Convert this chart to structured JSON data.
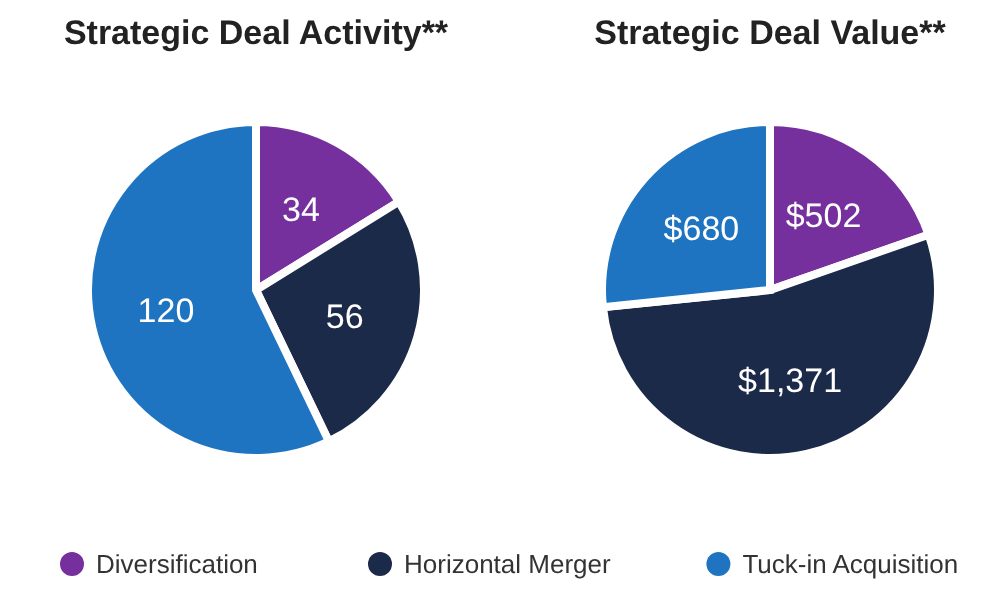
{
  "chart_data": [
    {
      "type": "pie",
      "title": "Strategic Deal Activity**",
      "categories": [
        "Diversification",
        "Horizontal Merger",
        "Tuck-in Acquisition"
      ],
      "values": [
        34,
        56,
        120
      ],
      "colors": [
        "#76309e",
        "#1b2a48",
        "#1f74c2"
      ],
      "data_labels": true,
      "legend": "bottom"
    },
    {
      "type": "pie",
      "title": "Strategic Deal Value**",
      "categories": [
        null,
        null,
        null
      ],
      "values": [
        502,
        1371,
        680
      ],
      "colors": [
        "#76309e",
        "#1b2a48",
        "#1f74c2"
      ],
      "value_labels": [
        "$502",
        "$1,371",
        "$680"
      ]
    }
  ]
}
